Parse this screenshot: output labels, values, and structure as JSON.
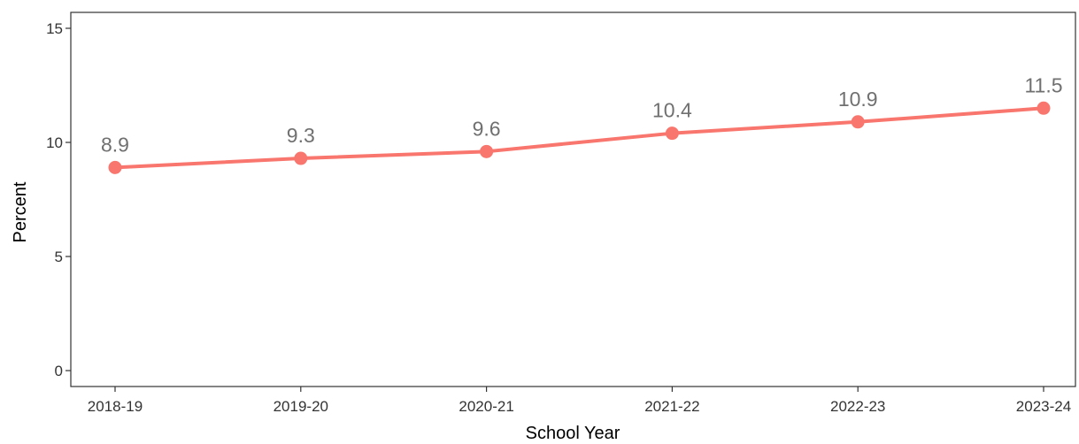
{
  "chart_data": {
    "type": "line",
    "title": "",
    "xlabel": "School Year",
    "ylabel": "Percent",
    "categories": [
      "2018-19",
      "2019-20",
      "2020-21",
      "2021-22",
      "2022-23",
      "2023-24"
    ],
    "series": [
      {
        "values": [
          8.9,
          9.3,
          9.6,
          10.4,
          10.9,
          11.5
        ],
        "labels": [
          "8.9",
          "9.3",
          "9.6",
          "10.4",
          "10.9",
          "11.5"
        ]
      }
    ],
    "ylim": [
      0,
      15
    ],
    "yticks": [
      0,
      5,
      10,
      15
    ],
    "ytick_labels": [
      "0",
      "5",
      "10",
      "15"
    ],
    "grid": false,
    "legend": "none",
    "colors": {
      "line": "#F8766D",
      "data_label": "#707070",
      "axis": "#333333"
    }
  }
}
